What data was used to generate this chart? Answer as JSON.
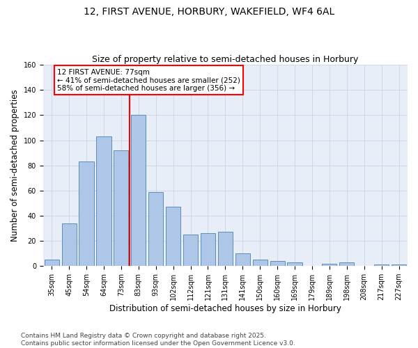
{
  "title_line1": "12, FIRST AVENUE, HORBURY, WAKEFIELD, WF4 6AL",
  "title_line2": "Size of property relative to semi-detached houses in Horbury",
  "xlabel": "Distribution of semi-detached houses by size in Horbury",
  "ylabel": "Number of semi-detached properties",
  "footer": "Contains HM Land Registry data © Crown copyright and database right 2025.\nContains public sector information licensed under the Open Government Licence v3.0.",
  "categories": [
    "35sqm",
    "45sqm",
    "54sqm",
    "64sqm",
    "73sqm",
    "83sqm",
    "93sqm",
    "102sqm",
    "112sqm",
    "121sqm",
    "131sqm",
    "141sqm",
    "150sqm",
    "160sqm",
    "169sqm",
    "179sqm",
    "189sqm",
    "198sqm",
    "208sqm",
    "217sqm",
    "227sqm"
  ],
  "values": [
    5,
    34,
    83,
    103,
    92,
    120,
    59,
    47,
    25,
    26,
    27,
    10,
    5,
    4,
    3,
    0,
    2,
    3,
    0,
    1,
    1
  ],
  "bar_color": "#aec6e8",
  "bar_edge_color": "#5b8db8",
  "vline_x": 4.5,
  "vline_color": "red",
  "annotation_text": "12 FIRST AVENUE: 77sqm\n← 41% of semi-detached houses are smaller (252)\n58% of semi-detached houses are larger (356) →",
  "ylim": [
    0,
    160
  ],
  "yticks": [
    0,
    20,
    40,
    60,
    80,
    100,
    120,
    140,
    160
  ],
  "grid_color": "#d0d8e8",
  "bg_color": "#e8eef8",
  "title_fontsize": 10,
  "subtitle_fontsize": 9,
  "axis_label_fontsize": 8.5,
  "tick_fontsize": 7,
  "footer_fontsize": 6.5,
  "annot_fontsize": 7.5
}
